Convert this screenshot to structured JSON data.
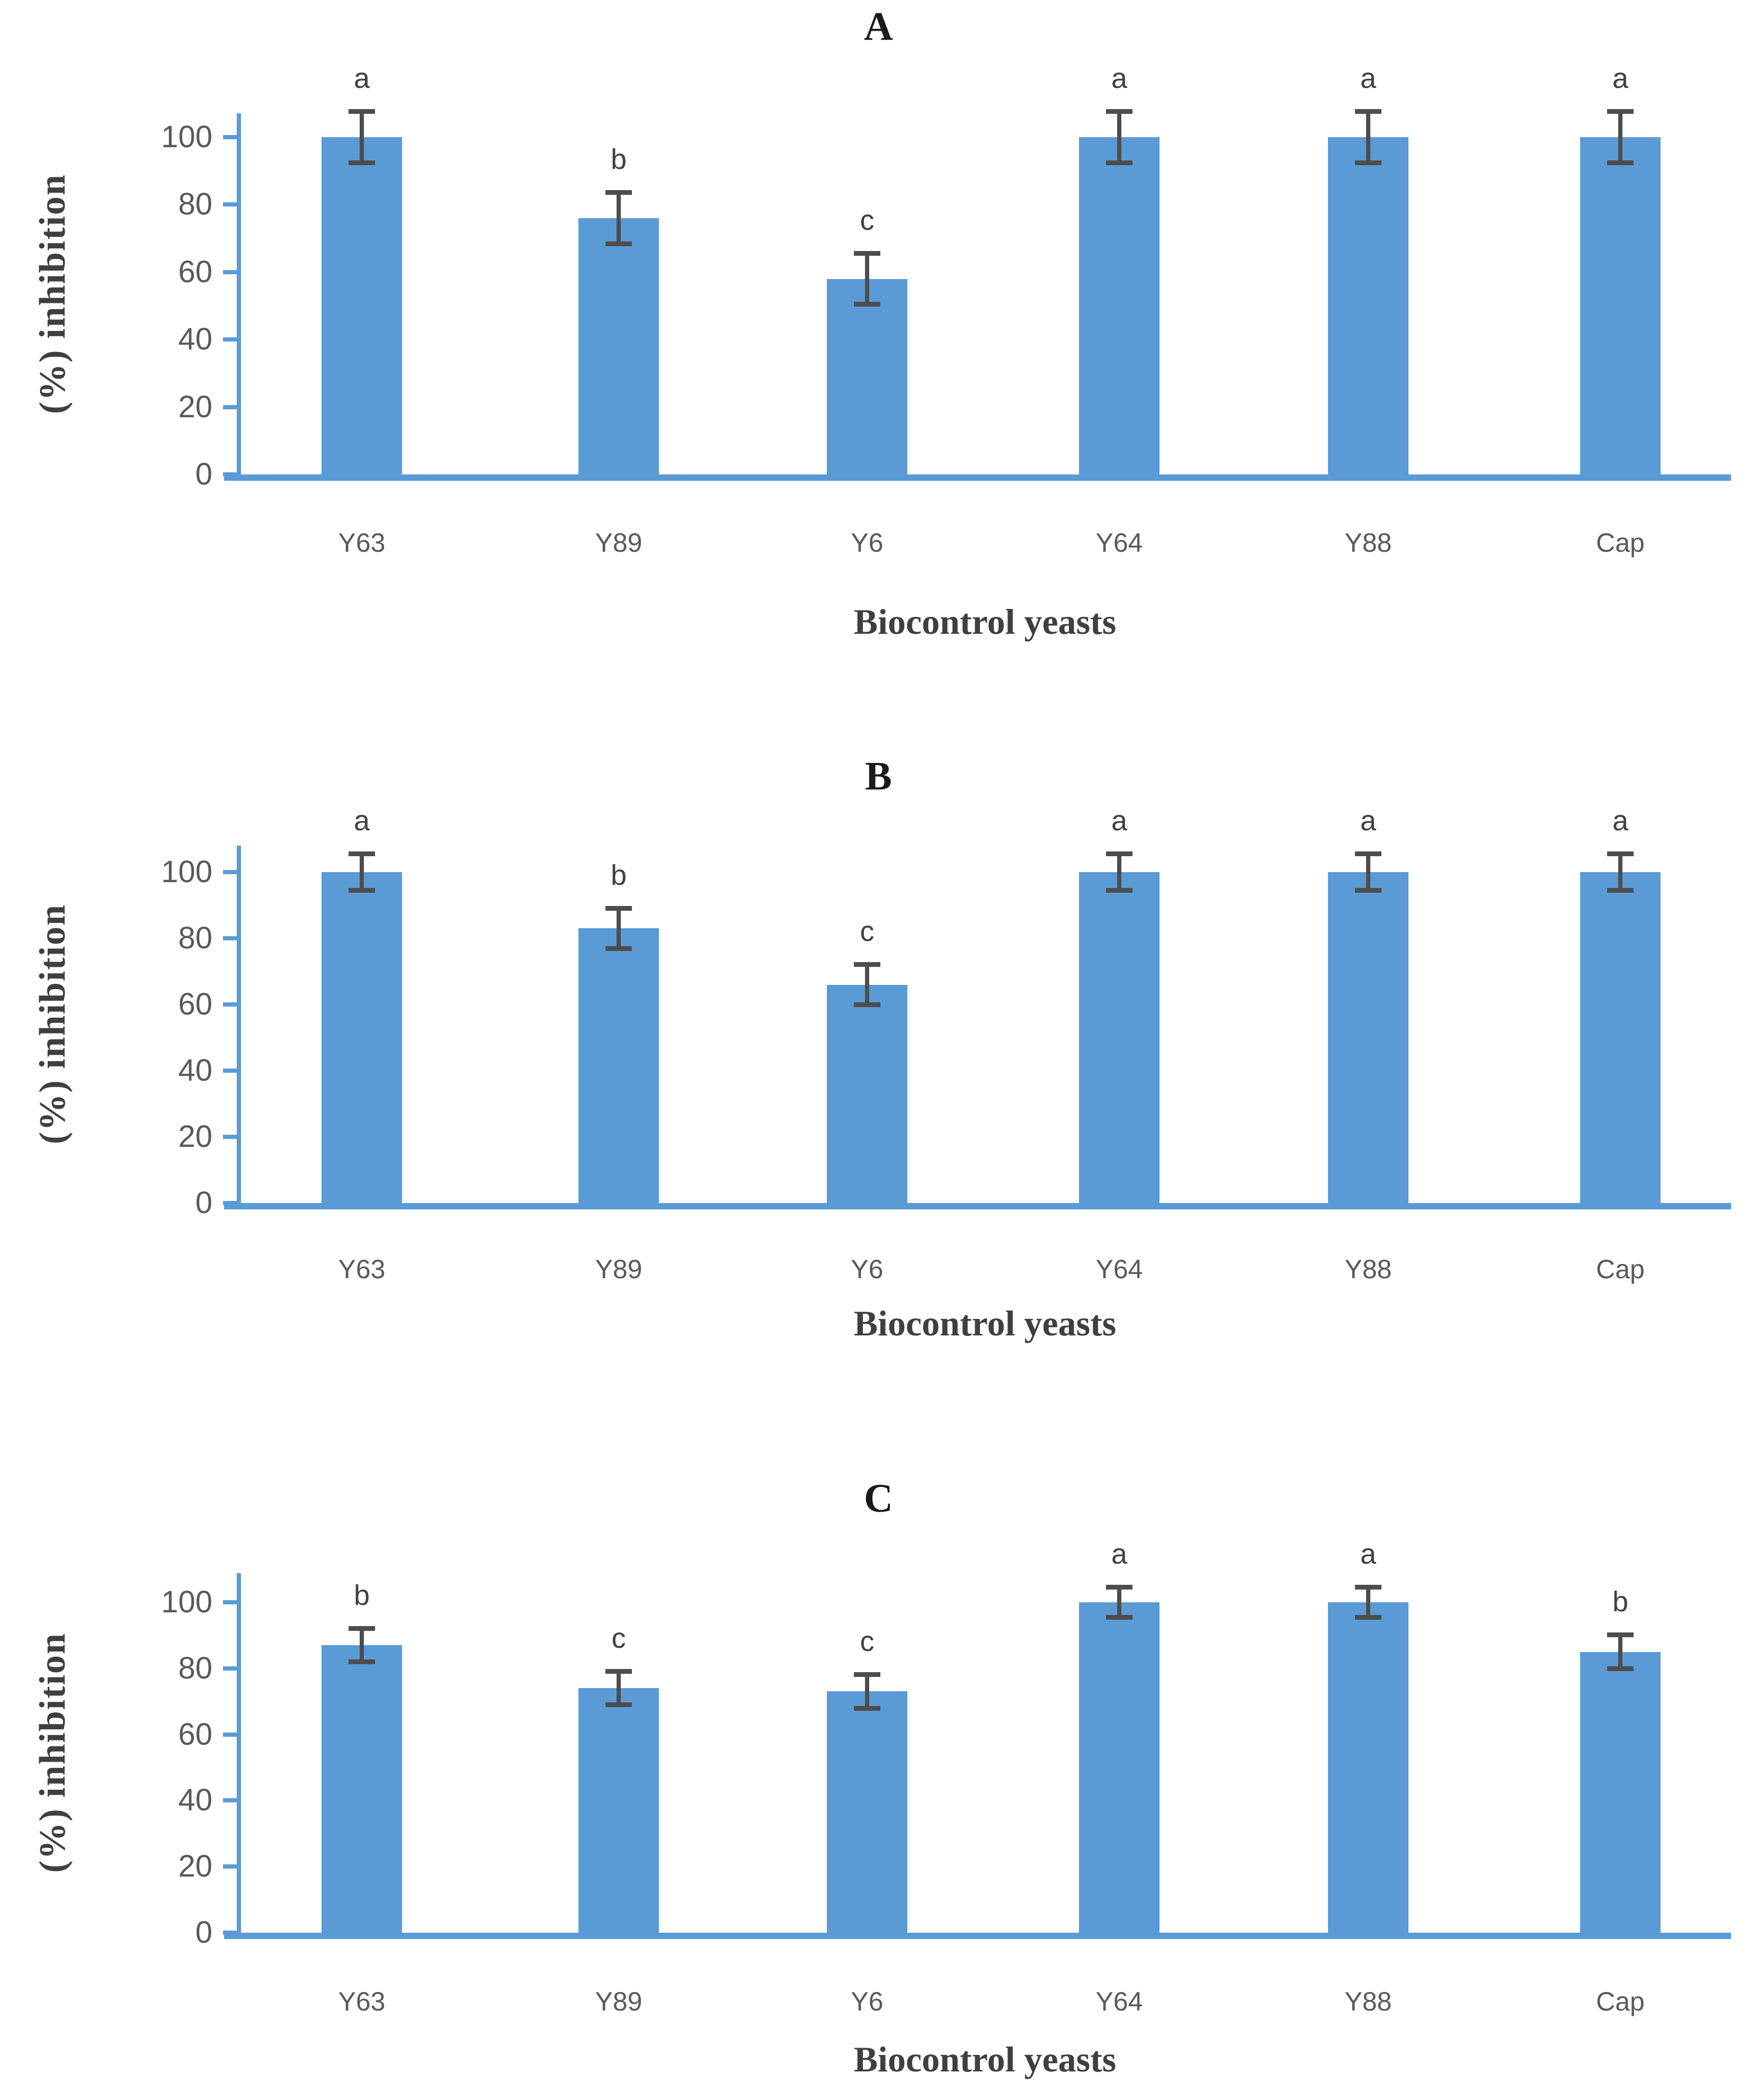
{
  "figure_colors": {
    "bar": "#5b9bd5",
    "axis": "#5b9bd5",
    "error_bar": "#4d4d4d",
    "tick_label": "#595959",
    "axis_title": "#3f3f3f",
    "panel_letter": "#1a1a1a"
  },
  "chart_data": [
    {
      "type": "bar",
      "panel_label": "A",
      "categories": [
        "Y63",
        "Y89",
        "Y6",
        "Y64",
        "Y88",
        "Cap"
      ],
      "values": [
        100,
        76,
        58,
        100,
        100,
        100
      ],
      "errors": [
        7.5,
        7.5,
        7.5,
        7.5,
        7.5,
        7.5
      ],
      "sig_letters": [
        "a",
        "b",
        "c",
        "a",
        "a",
        "a"
      ],
      "xlabel": "Biocontrol yeasts",
      "ylabel": "(%) inhibition",
      "y_ticks": [
        0,
        20,
        40,
        60,
        80,
        100
      ],
      "ylim": [
        0,
        110
      ],
      "grid": false,
      "legend": "none"
    },
    {
      "type": "bar",
      "panel_label": "B",
      "categories": [
        "Y63",
        "Y89",
        "Y6",
        "Y64",
        "Y88",
        "Cap"
      ],
      "values": [
        100,
        83,
        66,
        100,
        100,
        100
      ],
      "errors": [
        5.5,
        6,
        6,
        5.5,
        5.5,
        5.5
      ],
      "sig_letters": [
        "a",
        "b",
        "c",
        "a",
        "a",
        "a"
      ],
      "xlabel": "Biocontrol yeasts",
      "ylabel": "(%) inhibition",
      "y_ticks": [
        0,
        20,
        40,
        60,
        80,
        100
      ],
      "ylim": [
        0,
        110
      ],
      "grid": false,
      "legend": "none"
    },
    {
      "type": "bar",
      "panel_label": "C",
      "categories": [
        "Y63",
        "Y89",
        "Y6",
        "Y64",
        "Y88",
        "Cap"
      ],
      "values": [
        87,
        74,
        73,
        100,
        100,
        85
      ],
      "errors": [
        5,
        5,
        5,
        4.5,
        4.5,
        5
      ],
      "sig_letters": [
        "b",
        "c",
        "c",
        "a",
        "a",
        "b"
      ],
      "xlabel": "Biocontrol yeasts",
      "ylabel": "(%) inhibition",
      "y_ticks": [
        0,
        20,
        40,
        60,
        80,
        100
      ],
      "ylim": [
        0,
        110
      ],
      "grid": false,
      "legend": "none"
    }
  ]
}
